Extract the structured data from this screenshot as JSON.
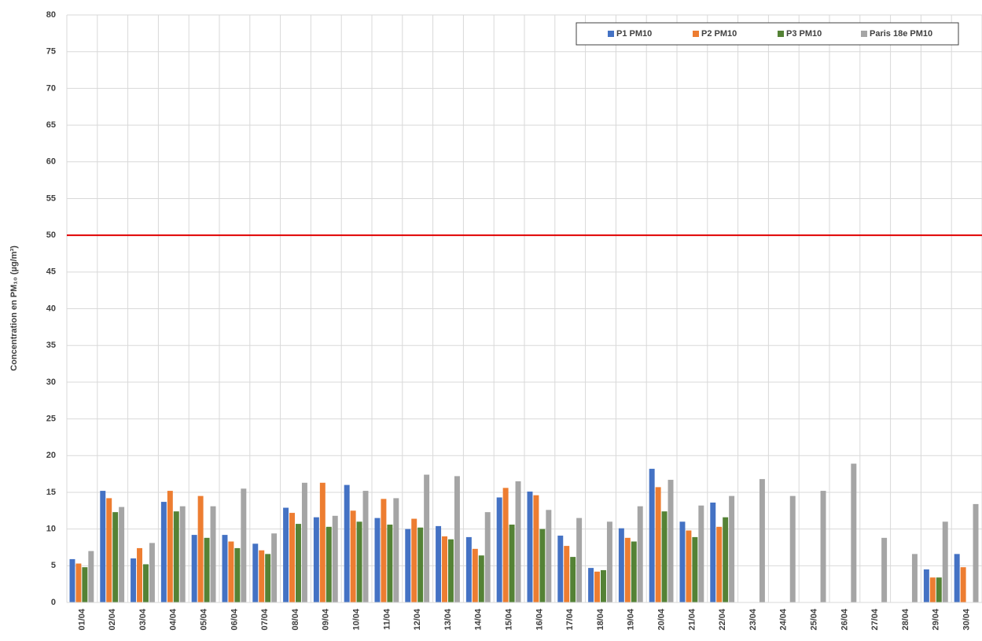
{
  "chart_data": {
    "type": "bar",
    "y_label": "Concentration en PM₁₀ (µg/m³)",
    "categories": [
      "01/04",
      "02/04",
      "03/04",
      "04/04",
      "05/04",
      "06/04",
      "07/04",
      "08/04",
      "09/04",
      "10/04",
      "11/04",
      "12/04",
      "13/04",
      "14/04",
      "15/04",
      "16/04",
      "17/04",
      "18/04",
      "19/04",
      "20/04",
      "21/04",
      "22/04",
      "23/04",
      "24/04",
      "25/04",
      "26/04",
      "27/04",
      "28/04",
      "29/04",
      "30/04"
    ],
    "series": [
      {
        "name": "P1 PM10",
        "color": "#4472c4",
        "values": [
          5.9,
          15.2,
          6.0,
          13.7,
          9.2,
          9.2,
          8.0,
          12.9,
          11.6,
          16.0,
          11.5,
          10.0,
          10.4,
          8.9,
          14.3,
          15.1,
          9.1,
          4.7,
          10.1,
          18.2,
          11.0,
          13.6,
          null,
          null,
          null,
          null,
          null,
          null,
          4.5,
          6.6
        ]
      },
      {
        "name": "P2 PM10",
        "color": "#ed7d31",
        "values": [
          5.3,
          14.2,
          7.4,
          15.2,
          14.5,
          8.3,
          7.1,
          12.2,
          16.3,
          12.5,
          14.1,
          11.4,
          9.0,
          7.3,
          15.6,
          14.6,
          7.7,
          4.2,
          8.8,
          15.7,
          9.8,
          10.3,
          null,
          null,
          null,
          null,
          null,
          null,
          3.4,
          4.8
        ]
      },
      {
        "name": "P3 PM10",
        "color": "#548235",
        "values": [
          4.8,
          12.3,
          5.2,
          12.4,
          8.8,
          7.4,
          6.6,
          10.7,
          10.3,
          11.0,
          10.6,
          10.2,
          8.6,
          6.4,
          10.6,
          10.0,
          6.2,
          4.4,
          8.3,
          12.4,
          8.9,
          11.6,
          null,
          null,
          null,
          null,
          null,
          null,
          3.4,
          null
        ]
      },
      {
        "name": "Paris 18e PM10",
        "color": "#a5a5a5",
        "values": [
          7.0,
          13.0,
          8.1,
          13.1,
          13.1,
          15.5,
          9.4,
          16.3,
          11.8,
          15.2,
          14.2,
          17.4,
          17.2,
          12.3,
          16.5,
          12.6,
          11.5,
          11.0,
          13.1,
          16.7,
          13.2,
          14.5,
          16.8,
          14.5,
          15.2,
          18.9,
          8.8,
          6.6,
          11.0,
          13.4
        ]
      }
    ],
    "reference_line": {
      "value": 50,
      "color": "#e00000"
    },
    "ylim": [
      0,
      80
    ],
    "yticks": [
      0,
      5,
      10,
      15,
      20,
      25,
      30,
      35,
      40,
      45,
      50,
      55,
      60,
      65,
      70,
      75,
      80
    ],
    "grid": true,
    "legend": "top-right"
  }
}
